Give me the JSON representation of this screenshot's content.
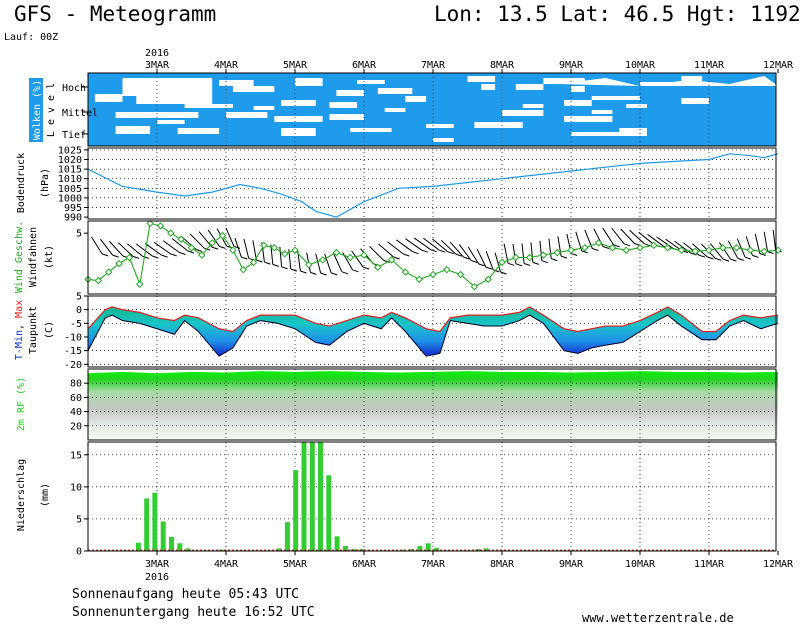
{
  "header": {
    "title": "GFS - Meteogramm",
    "location": "Lon: 13.5 Lat: 46.5 Hgt: 1192m",
    "run": "Lauf: 00Z"
  },
  "footer": {
    "sunrise": "Sonnenaufgang heute 05:43 UTC",
    "sunset": "Sonnenuntergang heute 16:52 UTC",
    "credit": "www.wetterzentrale.de"
  },
  "colors": {
    "cloud_blue": "#1e9bea",
    "pressure_line": "#1e9bea",
    "wind_green": "#22aa22",
    "precip_green": "#33cc33",
    "temp_max_red": "#e02020",
    "temp_min_blue": "#1030d0",
    "temp_fill_cyan": "#1ec6e0",
    "temp_fill_teal": "#14b8a0",
    "rh_green": "#22d422"
  },
  "chart_data": [
    {
      "type": "heatmap",
      "panel": "clouds",
      "ylabel": "Wolken (%)",
      "level_axis_label": "L e v e l",
      "levels": [
        "Hoch",
        "Mittel",
        "Tief"
      ],
      "x_categories": [
        "3MAR",
        "4MAR",
        "5MAR",
        "6MAR",
        "7MAR",
        "8MAR",
        "9MAR",
        "10MAR",
        "11MAR",
        "12MAR"
      ],
      "x_year_label": "2016"
    },
    {
      "type": "line",
      "panel": "pressure",
      "ylabel": "Bodendruck",
      "yunit": "(hPa)",
      "ylim": [
        989,
        1026
      ],
      "yticks": [
        990,
        995,
        1000,
        1005,
        1010,
        1015,
        1020,
        1025
      ],
      "x_days": [
        0,
        0.5,
        1,
        1.4,
        1.8,
        2.2,
        2.5,
        2.8,
        3.1,
        3.3,
        3.6,
        4,
        4.5,
        5,
        5.5,
        6,
        6.5,
        7,
        7.5,
        8,
        8.5,
        9,
        9.3,
        9.6,
        9.8,
        10
      ],
      "values": [
        1015,
        1006,
        1003,
        1001,
        1003,
        1007,
        1005,
        1002,
        998,
        993,
        990,
        998,
        1005,
        1006,
        1008,
        1010,
        1012,
        1014,
        1016,
        1018,
        1019,
        1020,
        1023,
        1022,
        1021,
        1023
      ]
    },
    {
      "type": "line",
      "panel": "wind",
      "ylabel": "Wind Geschw.",
      "ylabel2": "Windfahnen",
      "yunit": "(kt)",
      "ylim": [
        0,
        6
      ],
      "yticks": [
        5
      ],
      "x_days": [
        0,
        0.15,
        0.3,
        0.45,
        0.6,
        0.75,
        0.9,
        1.05,
        1.2,
        1.35,
        1.5,
        1.65,
        1.8,
        1.95,
        2.1,
        2.25,
        2.4,
        2.55,
        2.7,
        2.85,
        3,
        3.2,
        3.4,
        3.6,
        3.8,
        4,
        4.2,
        4.4,
        4.6,
        4.8,
        5,
        5.2,
        5.4,
        5.6,
        5.8,
        6,
        6.2,
        6.4,
        6.6,
        6.8,
        7,
        7.2,
        7.4,
        7.6,
        7.8,
        8,
        8.2,
        8.4,
        8.6,
        8.8,
        9,
        9.2,
        9.4,
        9.6,
        9.8,
        10
      ],
      "values": [
        1.2,
        1.1,
        1.8,
        2.5,
        3,
        0.8,
        5.8,
        5.6,
        5,
        4.5,
        3.8,
        3.2,
        4.2,
        4.8,
        3.6,
        2,
        2.6,
        4,
        3.8,
        3.3,
        3.6,
        2.4,
        2.8,
        3.4,
        3,
        3.2,
        2.2,
        2.8,
        1.8,
        1.2,
        1.6,
        2,
        1.6,
        0.6,
        1.2,
        2.6,
        3,
        3,
        3.2,
        3.4,
        3.6,
        3.8,
        4.2,
        3.8,
        3.6,
        3.8,
        4,
        3.8,
        3.6,
        3.5,
        3.6,
        3.8,
        3.8,
        3.6,
        3.5,
        3.6
      ]
    },
    {
      "type": "area",
      "panel": "temperature",
      "ylabel_parts": [
        "T-Min",
        ", ",
        "Max"
      ],
      "ylabel2": "Taupunkt",
      "yunit": "(C)",
      "ylim": [
        -21,
        5
      ],
      "yticks": [
        5,
        0,
        -5,
        -10,
        -15,
        -20
      ],
      "x_days": [
        0,
        0.25,
        0.35,
        0.5,
        0.75,
        1,
        1.25,
        1.4,
        1.6,
        1.9,
        2.1,
        2.3,
        2.5,
        2.75,
        3,
        3.3,
        3.5,
        3.75,
        4,
        4.25,
        4.4,
        4.6,
        4.9,
        5.1,
        5.25,
        5.5,
        5.75,
        6,
        6.25,
        6.4,
        6.6,
        6.9,
        7.1,
        7.3,
        7.5,
        7.75,
        8,
        8.25,
        8.4,
        8.6,
        8.9,
        9.1,
        9.3,
        9.5,
        9.75,
        10
      ],
      "tmax": [
        -7,
        0,
        1,
        0,
        -1,
        -3,
        -4,
        -2,
        -3,
        -7,
        -8,
        -4,
        -2,
        -2,
        -2,
        -5,
        -6,
        -4,
        -2,
        -3,
        -1,
        -3,
        -7,
        -8,
        -3,
        -2,
        -2,
        -2,
        -1,
        1,
        -2,
        -7,
        -8,
        -7,
        -6,
        -6,
        -4,
        -1,
        1,
        -2,
        -8,
        -8,
        -4,
        -2,
        -3,
        -2
      ],
      "tmin": [
        -15,
        -3,
        -2,
        -4,
        -5,
        -7,
        -9,
        -4,
        -8,
        -17,
        -14,
        -6,
        -4,
        -5,
        -7,
        -12,
        -13,
        -8,
        -5,
        -7,
        -3,
        -8,
        -17,
        -16,
        -4,
        -5,
        -6,
        -6,
        -4,
        -2,
        -5,
        -15,
        -16,
        -14,
        -13,
        -12,
        -8,
        -4,
        -2,
        -6,
        -11,
        -11,
        -6,
        -4,
        -7,
        -5
      ],
      "dewpoint": [
        -15,
        -3,
        -2,
        -4,
        -5,
        -7,
        -9,
        -4,
        -8,
        -17,
        -14,
        -6,
        -4,
        -5,
        -7,
        -12,
        -13,
        -8,
        -5,
        -7,
        -3,
        -8,
        -17,
        -16,
        -4,
        -5,
        -6,
        -6,
        -4,
        -2,
        -5,
        -15,
        -16,
        -14,
        -13,
        -12,
        -8,
        -4,
        -2,
        -6,
        -11,
        -11,
        -6,
        -4,
        -7,
        -5
      ]
    },
    {
      "type": "area",
      "panel": "humidity",
      "ylabel": "2m RF (%)",
      "ylim": [
        0,
        100
      ],
      "yticks": [
        80,
        60,
        40,
        20
      ],
      "x_days": [
        0,
        0.5,
        1,
        1.5,
        2,
        2.5,
        3,
        3.5,
        4,
        4.5,
        5,
        5.5,
        6,
        6.5,
        7,
        7.5,
        8,
        8.5,
        9,
        9.5,
        10
      ],
      "values": [
        94,
        96,
        94,
        96,
        95,
        97,
        96,
        97,
        96,
        95,
        96,
        97,
        96,
        96,
        95,
        96,
        97,
        96,
        96,
        95,
        96
      ]
    },
    {
      "type": "bar",
      "panel": "precipitation",
      "ylabel": "Niederschlag",
      "yunit": "(mm)",
      "ylim": [
        0,
        17
      ],
      "yticks": [
        0,
        5,
        10,
        15
      ],
      "x_categories": [
        "3MAR",
        "4MAR",
        "5MAR",
        "6MAR",
        "7MAR",
        "8MAR",
        "9MAR",
        "10MAR",
        "11MAR",
        "12MAR"
      ],
      "x_year_label": "2016",
      "x_days": [
        0.73,
        0.85,
        0.97,
        1.09,
        1.21,
        1.33,
        1.45,
        1.57,
        1.69,
        1.81,
        1.93,
        2.05,
        2.17,
        2.29,
        2.41,
        2.53,
        2.65,
        2.77,
        2.89,
        3.01,
        3.13,
        3.25,
        3.37,
        3.49,
        3.61,
        3.73,
        3.85,
        3.97,
        4.09,
        4.21,
        4.33,
        4.45,
        4.57,
        4.69,
        4.81,
        4.93,
        5.05,
        5.17,
        5.29,
        5.41,
        5.53,
        5.65,
        5.77
      ],
      "values": [
        1.3,
        8.2,
        9.1,
        4.6,
        2.2,
        1.2,
        0.4,
        0.1,
        0,
        0,
        0.2,
        0,
        0,
        0,
        0,
        0.1,
        0,
        0.4,
        4.5,
        12.6,
        17,
        17,
        17,
        11.8,
        2.3,
        0.8,
        0.3,
        0.3,
        0,
        0,
        0,
        0.1,
        0.2,
        0.3,
        0.8,
        1.2,
        0.5,
        0,
        0,
        0,
        0.1,
        0.3,
        0.4
      ]
    }
  ]
}
